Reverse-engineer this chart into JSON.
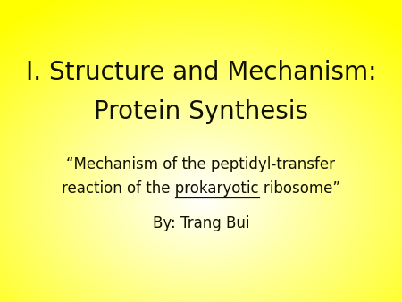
{
  "title_line1": "I. Structure and Mechanism:",
  "title_line2": "Protein Synthesis",
  "subtitle_line1": "“Mechanism of the peptidyl-transfer",
  "subtitle_line2": "reaction of the ",
  "subtitle_underline": "prokaryotic",
  "subtitle_end": " ribosome”",
  "author": "By: Trang Bui",
  "text_color": "#111100",
  "title_fontsize": 20,
  "subtitle_fontsize": 12,
  "author_fontsize": 12,
  "gradient_yellow": [
    1.0,
    1.0,
    0.0
  ],
  "gradient_white": [
    1.0,
    1.0,
    1.0
  ]
}
